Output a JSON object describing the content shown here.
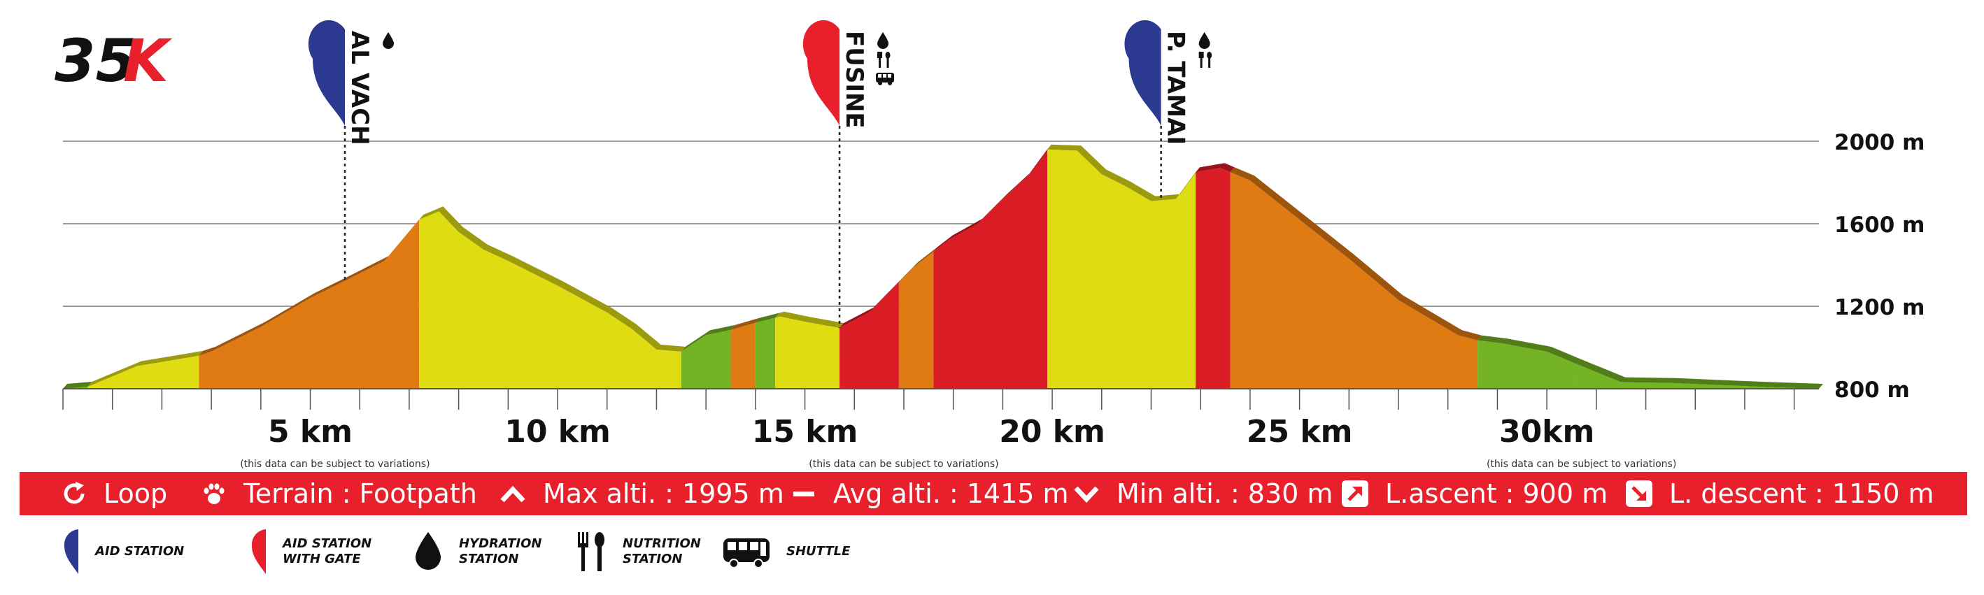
{
  "race": {
    "distance_num": "35",
    "distance_k": "K"
  },
  "colors": {
    "grade_light_green": "#73b324",
    "grade_yellow": "#dfdc12",
    "grade_orange": "#e07a12",
    "grade_red": "#da1c25",
    "aid_blue": "#2b3990",
    "aid_red": "#e8202b",
    "axis": "#555555",
    "grid": "#7a7a7a",
    "bar": "#e8202b"
  },
  "chart_data": {
    "type": "area",
    "title": "",
    "xlabel": "",
    "ylabel": "",
    "xlim": [
      0,
      35.5
    ],
    "ylim": [
      800,
      2000
    ],
    "grid": true,
    "x_ticks": [
      5,
      10,
      15,
      20,
      25,
      30
    ],
    "x_tick_labels": [
      "5 km",
      "10 km",
      "15 km",
      "20 km",
      "25 km",
      "30km"
    ],
    "y_ticks": [
      800,
      1200,
      1600,
      2000
    ],
    "y_tick_labels": [
      "800 m",
      "1200 m",
      "1600 m",
      "2000 m"
    ],
    "profile": {
      "x": [
        0,
        0.5,
        1.5,
        2.5,
        2.75,
        3.0,
        4.0,
        5.0,
        5.8,
        6.5,
        7.2,
        7.6,
        8.0,
        8.5,
        9.0,
        10.0,
        11.0,
        11.5,
        12.0,
        12.5,
        13.0,
        13.5,
        14.0,
        14.5,
        15.0,
        15.7,
        16.3,
        17.2,
        17.9,
        18.5,
        19.0,
        19.5,
        19.9,
        20.5,
        21.0,
        21.5,
        22.0,
        22.5,
        22.9,
        23.4,
        24.0,
        25.0,
        26.0,
        27.0,
        28.2,
        28.6,
        29.1,
        30.0,
        30.6,
        31.5,
        32.5,
        33.5,
        34.5,
        35.5
      ],
      "elevation": [
        800,
        810,
        910,
        950,
        960,
        980,
        1100,
        1240,
        1335,
        1420,
        1620,
        1660,
        1560,
        1475,
        1420,
        1300,
        1170,
        1090,
        990,
        980,
        1060,
        1085,
        1120,
        1150,
        1125,
        1095,
        1170,
        1390,
        1520,
        1600,
        1720,
        1830,
        1960,
        1955,
        1840,
        1780,
        1710,
        1720,
        1850,
        1870,
        1810,
        1620,
        1430,
        1230,
        1060,
        1035,
        1020,
        980,
        920,
        832,
        828,
        818,
        808,
        800
      ]
    },
    "gradient_segments": [
      {
        "from": 0,
        "to": 0.5,
        "grade": "grade_light_green"
      },
      {
        "from": 0.5,
        "to": 2.75,
        "grade": "grade_yellow"
      },
      {
        "from": 2.75,
        "to": 7.2,
        "grade": "grade_orange"
      },
      {
        "from": 7.2,
        "to": 12.5,
        "grade": "grade_yellow"
      },
      {
        "from": 12.5,
        "to": 13.5,
        "grade": "grade_light_green"
      },
      {
        "from": 13.5,
        "to": 14.0,
        "grade": "grade_orange"
      },
      {
        "from": 14.0,
        "to": 14.4,
        "grade": "grade_light_green"
      },
      {
        "from": 14.4,
        "to": 15.7,
        "grade": "grade_yellow"
      },
      {
        "from": 15.7,
        "to": 16.9,
        "grade": "grade_red"
      },
      {
        "from": 16.9,
        "to": 17.6,
        "grade": "grade_orange"
      },
      {
        "from": 17.6,
        "to": 19.9,
        "grade": "grade_red"
      },
      {
        "from": 19.9,
        "to": 22.9,
        "grade": "grade_yellow"
      },
      {
        "from": 22.9,
        "to": 23.6,
        "grade": "grade_red"
      },
      {
        "from": 23.6,
        "to": 28.6,
        "grade": "grade_orange"
      },
      {
        "from": 28.6,
        "to": 30.6,
        "grade": "grade_light_green"
      },
      {
        "from": 30.6,
        "to": 35.5,
        "grade": "grade_light_green"
      }
    ],
    "aid_stations": [
      {
        "name": "AL VACH",
        "km": 5.7,
        "type": "aid_station",
        "services": [
          "hydration"
        ]
      },
      {
        "name": "FUSINE",
        "km": 15.7,
        "type": "aid_station_with_gate",
        "services": [
          "hydration",
          "nutrition",
          "shuttle"
        ]
      },
      {
        "name": "P. TAMAI",
        "km": 22.2,
        "type": "aid_station",
        "services": [
          "hydration",
          "nutrition"
        ]
      }
    ],
    "notes": [
      {
        "text": "(this data can be subject to variations)",
        "km": 5.5
      },
      {
        "text": "(this data can be subject to variations)",
        "km": 17.0
      },
      {
        "text": "(this data can be subject to variations)",
        "km": 30.7
      }
    ]
  },
  "stats": {
    "loop": {
      "icon": "loop-icon",
      "label": "Loop",
      "value": ""
    },
    "terrain": {
      "icon": "paw-icon",
      "label": "Terrain :",
      "value": "Footpath"
    },
    "max_alti": {
      "icon": "caret-up-icon",
      "label": "Max alti. :",
      "value": "1995 m"
    },
    "avg_alti": {
      "icon": "dash-icon",
      "label": "Avg alti. :",
      "value": "1415 m"
    },
    "min_alti": {
      "icon": "caret-down-icon",
      "label": "Min alti. :",
      "value": "830 m"
    },
    "ascent": {
      "icon": "arrow-up-right-icon",
      "label": "L.ascent :",
      "value": "900 m"
    },
    "descent": {
      "icon": "arrow-down-right-icon",
      "label": "L. descent :",
      "value": "1150 m"
    }
  },
  "legend": [
    {
      "icon": "aid-station-blue-icon",
      "label": "AID STATION"
    },
    {
      "icon": "aid-station-gate-red-icon",
      "label": "AID STATION WITH GATE"
    },
    {
      "icon": "hydration-icon",
      "label": "HYDRATION STATION"
    },
    {
      "icon": "nutrition-icon",
      "label": "NUTRITION STATION"
    },
    {
      "icon": "shuttle-icon",
      "label": "SHUTTLE"
    }
  ]
}
